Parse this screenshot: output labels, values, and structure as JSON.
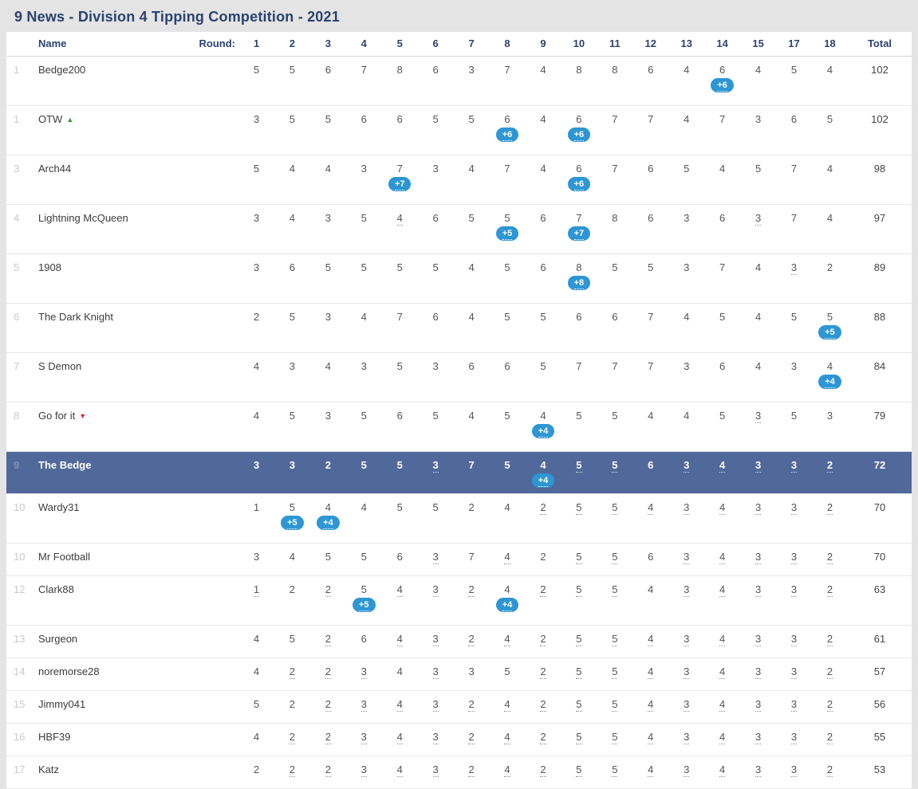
{
  "page": {
    "title": "9 News - Division 4 Tipping Competition - 2021"
  },
  "colors": {
    "accent_navy": "#2c4270",
    "highlight_row": "#50689a",
    "badge_blue": "#2e96d4",
    "arrow_up_green": "#23a127",
    "arrow_down_red": "#d42a2a",
    "page_background": "#e4e4e4"
  },
  "table": {
    "name_header": "Name",
    "round_header": "Round:",
    "total_header": "Total",
    "round_numbers": [
      "1",
      "2",
      "3",
      "4",
      "5",
      "6",
      "7",
      "8",
      "9",
      "10",
      "11",
      "12",
      "13",
      "14",
      "15",
      "17",
      "18"
    ],
    "rows": [
      {
        "rank": "1",
        "name": "Bedge200",
        "arrow": null,
        "highlight": false,
        "total": "102",
        "scores": [
          {
            "v": "5"
          },
          {
            "v": "5"
          },
          {
            "v": "6"
          },
          {
            "v": "7"
          },
          {
            "v": "8"
          },
          {
            "v": "6"
          },
          {
            "v": "3"
          },
          {
            "v": "7"
          },
          {
            "v": "4"
          },
          {
            "v": "8"
          },
          {
            "v": "8"
          },
          {
            "v": "6"
          },
          {
            "v": "4"
          },
          {
            "v": "6",
            "b": "+6"
          },
          {
            "v": "4"
          },
          {
            "v": "5"
          },
          {
            "v": "4"
          }
        ]
      },
      {
        "rank": "1",
        "name": "OTW",
        "arrow": "up",
        "highlight": false,
        "total": "102",
        "scores": [
          {
            "v": "3"
          },
          {
            "v": "5"
          },
          {
            "v": "5"
          },
          {
            "v": "6"
          },
          {
            "v": "6"
          },
          {
            "v": "5"
          },
          {
            "v": "5"
          },
          {
            "v": "6",
            "b": "+6"
          },
          {
            "v": "4"
          },
          {
            "v": "6",
            "b": "+6"
          },
          {
            "v": "7"
          },
          {
            "v": "7"
          },
          {
            "v": "4"
          },
          {
            "v": "7"
          },
          {
            "v": "3"
          },
          {
            "v": "6"
          },
          {
            "v": "5"
          }
        ]
      },
      {
        "rank": "3",
        "name": "Arch44",
        "arrow": null,
        "highlight": false,
        "total": "98",
        "scores": [
          {
            "v": "5"
          },
          {
            "v": "4"
          },
          {
            "v": "4"
          },
          {
            "v": "3"
          },
          {
            "v": "7",
            "b": "+7"
          },
          {
            "v": "3"
          },
          {
            "v": "4"
          },
          {
            "v": "7"
          },
          {
            "v": "4"
          },
          {
            "v": "6",
            "b": "+6"
          },
          {
            "v": "7"
          },
          {
            "v": "6"
          },
          {
            "v": "5"
          },
          {
            "v": "4"
          },
          {
            "v": "5"
          },
          {
            "v": "7"
          },
          {
            "v": "4"
          }
        ]
      },
      {
        "rank": "4",
        "name": "Lightning McQueen",
        "arrow": null,
        "highlight": false,
        "total": "97",
        "scores": [
          {
            "v": "3"
          },
          {
            "v": "4"
          },
          {
            "v": "3"
          },
          {
            "v": "5"
          },
          {
            "v": "4",
            "u": true
          },
          {
            "v": "6"
          },
          {
            "v": "5"
          },
          {
            "v": "5",
            "b": "+5"
          },
          {
            "v": "6"
          },
          {
            "v": "7",
            "b": "+7"
          },
          {
            "v": "8"
          },
          {
            "v": "6"
          },
          {
            "v": "3"
          },
          {
            "v": "6"
          },
          {
            "v": "3",
            "u": true
          },
          {
            "v": "7"
          },
          {
            "v": "4"
          }
        ]
      },
      {
        "rank": "5",
        "name": "1908",
        "arrow": null,
        "highlight": false,
        "total": "89",
        "scores": [
          {
            "v": "3"
          },
          {
            "v": "6"
          },
          {
            "v": "5"
          },
          {
            "v": "5"
          },
          {
            "v": "5"
          },
          {
            "v": "5"
          },
          {
            "v": "4"
          },
          {
            "v": "5"
          },
          {
            "v": "6"
          },
          {
            "v": "8",
            "b": "+8"
          },
          {
            "v": "5"
          },
          {
            "v": "5"
          },
          {
            "v": "3"
          },
          {
            "v": "7"
          },
          {
            "v": "4"
          },
          {
            "v": "3",
            "u": true
          },
          {
            "v": "2"
          }
        ]
      },
      {
        "rank": "6",
        "name": "The Dark Knight",
        "arrow": null,
        "highlight": false,
        "total": "88",
        "scores": [
          {
            "v": "2"
          },
          {
            "v": "5"
          },
          {
            "v": "3"
          },
          {
            "v": "4"
          },
          {
            "v": "7"
          },
          {
            "v": "6"
          },
          {
            "v": "4"
          },
          {
            "v": "5"
          },
          {
            "v": "5"
          },
          {
            "v": "6"
          },
          {
            "v": "6"
          },
          {
            "v": "7"
          },
          {
            "v": "4"
          },
          {
            "v": "5"
          },
          {
            "v": "4"
          },
          {
            "v": "5"
          },
          {
            "v": "5",
            "b": "+5"
          }
        ]
      },
      {
        "rank": "7",
        "name": "S Demon",
        "arrow": null,
        "highlight": false,
        "total": "84",
        "scores": [
          {
            "v": "4"
          },
          {
            "v": "3"
          },
          {
            "v": "4"
          },
          {
            "v": "3"
          },
          {
            "v": "5"
          },
          {
            "v": "3"
          },
          {
            "v": "6"
          },
          {
            "v": "6"
          },
          {
            "v": "5"
          },
          {
            "v": "7"
          },
          {
            "v": "7"
          },
          {
            "v": "7"
          },
          {
            "v": "3"
          },
          {
            "v": "6"
          },
          {
            "v": "4"
          },
          {
            "v": "3"
          },
          {
            "v": "4",
            "b": "+4"
          }
        ]
      },
      {
        "rank": "8",
        "name": "Go for it",
        "arrow": "down",
        "highlight": false,
        "total": "79",
        "scores": [
          {
            "v": "4"
          },
          {
            "v": "5"
          },
          {
            "v": "3"
          },
          {
            "v": "5"
          },
          {
            "v": "6"
          },
          {
            "v": "5"
          },
          {
            "v": "4"
          },
          {
            "v": "5"
          },
          {
            "v": "4",
            "b": "+4"
          },
          {
            "v": "5"
          },
          {
            "v": "5"
          },
          {
            "v": "4"
          },
          {
            "v": "4"
          },
          {
            "v": "5"
          },
          {
            "v": "3",
            "u": true
          },
          {
            "v": "5"
          },
          {
            "v": "3"
          }
        ]
      },
      {
        "rank": "9",
        "name": "The Bedge",
        "arrow": null,
        "highlight": true,
        "total": "72",
        "scores": [
          {
            "v": "3"
          },
          {
            "v": "3"
          },
          {
            "v": "2"
          },
          {
            "v": "5"
          },
          {
            "v": "5"
          },
          {
            "v": "3",
            "u": true
          },
          {
            "v": "7"
          },
          {
            "v": "5"
          },
          {
            "v": "4",
            "b": "+4"
          },
          {
            "v": "5",
            "u": true
          },
          {
            "v": "5",
            "u": true
          },
          {
            "v": "6"
          },
          {
            "v": "3",
            "u": true
          },
          {
            "v": "4",
            "u": true
          },
          {
            "v": "3",
            "u": true
          },
          {
            "v": "3",
            "u": true
          },
          {
            "v": "2",
            "u": true
          }
        ]
      },
      {
        "rank": "10",
        "name": "Wardy31",
        "arrow": null,
        "highlight": false,
        "total": "70",
        "scores": [
          {
            "v": "1"
          },
          {
            "v": "5",
            "b": "+5"
          },
          {
            "v": "4",
            "b": "+4"
          },
          {
            "v": "4"
          },
          {
            "v": "5"
          },
          {
            "v": "5"
          },
          {
            "v": "2"
          },
          {
            "v": "4"
          },
          {
            "v": "2",
            "u": true
          },
          {
            "v": "5",
            "u": true
          },
          {
            "v": "5",
            "u": true
          },
          {
            "v": "4",
            "u": true
          },
          {
            "v": "3",
            "u": true
          },
          {
            "v": "4",
            "u": true
          },
          {
            "v": "3",
            "u": true
          },
          {
            "v": "3",
            "u": true
          },
          {
            "v": "2",
            "u": true
          }
        ]
      },
      {
        "rank": "10",
        "name": "Mr Football",
        "arrow": null,
        "highlight": false,
        "total": "70",
        "scores": [
          {
            "v": "3"
          },
          {
            "v": "4"
          },
          {
            "v": "5"
          },
          {
            "v": "5"
          },
          {
            "v": "6"
          },
          {
            "v": "3",
            "u": true
          },
          {
            "v": "7"
          },
          {
            "v": "4",
            "u": true
          },
          {
            "v": "2"
          },
          {
            "v": "5",
            "u": true
          },
          {
            "v": "5",
            "u": true
          },
          {
            "v": "6"
          },
          {
            "v": "3",
            "u": true
          },
          {
            "v": "4",
            "u": true
          },
          {
            "v": "3",
            "u": true
          },
          {
            "v": "3",
            "u": true
          },
          {
            "v": "2",
            "u": true
          }
        ]
      },
      {
        "rank": "12",
        "name": "Clark88",
        "arrow": null,
        "highlight": false,
        "total": "63",
        "scores": [
          {
            "v": "1",
            "u": true
          },
          {
            "v": "2"
          },
          {
            "v": "2",
            "u": true
          },
          {
            "v": "5",
            "b": "+5"
          },
          {
            "v": "4",
            "u": true
          },
          {
            "v": "3",
            "u": true
          },
          {
            "v": "2",
            "u": true
          },
          {
            "v": "4",
            "b": "+4"
          },
          {
            "v": "2",
            "u": true
          },
          {
            "v": "5",
            "u": true
          },
          {
            "v": "5",
            "u": true
          },
          {
            "v": "4"
          },
          {
            "v": "3",
            "u": true
          },
          {
            "v": "4",
            "u": true
          },
          {
            "v": "3",
            "u": true
          },
          {
            "v": "3",
            "u": true
          },
          {
            "v": "2",
            "u": true
          }
        ]
      },
      {
        "rank": "13",
        "name": "Surgeon",
        "arrow": null,
        "highlight": false,
        "total": "61",
        "scores": [
          {
            "v": "4"
          },
          {
            "v": "5"
          },
          {
            "v": "2",
            "u": true
          },
          {
            "v": "6"
          },
          {
            "v": "4",
            "u": true
          },
          {
            "v": "3",
            "u": true
          },
          {
            "v": "2",
            "u": true
          },
          {
            "v": "4",
            "u": true
          },
          {
            "v": "2",
            "u": true
          },
          {
            "v": "5",
            "u": true
          },
          {
            "v": "5",
            "u": true
          },
          {
            "v": "4",
            "u": true
          },
          {
            "v": "3",
            "u": true
          },
          {
            "v": "4",
            "u": true
          },
          {
            "v": "3",
            "u": true
          },
          {
            "v": "3",
            "u": true
          },
          {
            "v": "2",
            "u": true
          }
        ]
      },
      {
        "rank": "14",
        "name": "noremorse28",
        "arrow": null,
        "highlight": false,
        "total": "57",
        "scores": [
          {
            "v": "4"
          },
          {
            "v": "2",
            "u": true
          },
          {
            "v": "2",
            "u": true
          },
          {
            "v": "3",
            "u": true
          },
          {
            "v": "4"
          },
          {
            "v": "3",
            "u": true
          },
          {
            "v": "3"
          },
          {
            "v": "5"
          },
          {
            "v": "2",
            "u": true
          },
          {
            "v": "5",
            "u": true
          },
          {
            "v": "5",
            "u": true
          },
          {
            "v": "4",
            "u": true
          },
          {
            "v": "3",
            "u": true
          },
          {
            "v": "4",
            "u": true
          },
          {
            "v": "3",
            "u": true
          },
          {
            "v": "3",
            "u": true
          },
          {
            "v": "2",
            "u": true
          }
        ]
      },
      {
        "rank": "15",
        "name": "Jimmy041",
        "arrow": null,
        "highlight": false,
        "total": "56",
        "scores": [
          {
            "v": "5"
          },
          {
            "v": "2"
          },
          {
            "v": "2",
            "u": true
          },
          {
            "v": "3",
            "u": true
          },
          {
            "v": "4",
            "u": true
          },
          {
            "v": "3",
            "u": true
          },
          {
            "v": "2",
            "u": true
          },
          {
            "v": "4",
            "u": true
          },
          {
            "v": "2",
            "u": true
          },
          {
            "v": "5",
            "u": true
          },
          {
            "v": "5",
            "u": true
          },
          {
            "v": "4",
            "u": true
          },
          {
            "v": "3",
            "u": true
          },
          {
            "v": "4",
            "u": true
          },
          {
            "v": "3",
            "u": true
          },
          {
            "v": "3",
            "u": true
          },
          {
            "v": "2",
            "u": true
          }
        ]
      },
      {
        "rank": "16",
        "name": "HBF39",
        "arrow": null,
        "highlight": false,
        "total": "55",
        "scores": [
          {
            "v": "4"
          },
          {
            "v": "2",
            "u": true
          },
          {
            "v": "2",
            "u": true
          },
          {
            "v": "3",
            "u": true
          },
          {
            "v": "4",
            "u": true
          },
          {
            "v": "3",
            "u": true
          },
          {
            "v": "2",
            "u": true
          },
          {
            "v": "4",
            "u": true
          },
          {
            "v": "2",
            "u": true
          },
          {
            "v": "5",
            "u": true
          },
          {
            "v": "5",
            "u": true
          },
          {
            "v": "4",
            "u": true
          },
          {
            "v": "3",
            "u": true
          },
          {
            "v": "4",
            "u": true
          },
          {
            "v": "3",
            "u": true
          },
          {
            "v": "3",
            "u": true
          },
          {
            "v": "2",
            "u": true
          }
        ]
      },
      {
        "rank": "17",
        "name": "Katz",
        "arrow": null,
        "highlight": false,
        "total": "53",
        "scores": [
          {
            "v": "2"
          },
          {
            "v": "2",
            "u": true
          },
          {
            "v": "2",
            "u": true
          },
          {
            "v": "3",
            "u": true
          },
          {
            "v": "4",
            "u": true
          },
          {
            "v": "3",
            "u": true
          },
          {
            "v": "2",
            "u": true
          },
          {
            "v": "4",
            "u": true
          },
          {
            "v": "2",
            "u": true
          },
          {
            "v": "5",
            "u": true
          },
          {
            "v": "5",
            "u": true
          },
          {
            "v": "4",
            "u": true
          },
          {
            "v": "3",
            "u": true
          },
          {
            "v": "4",
            "u": true
          },
          {
            "v": "3",
            "u": true
          },
          {
            "v": "3",
            "u": true
          },
          {
            "v": "2",
            "u": true
          }
        ]
      }
    ]
  }
}
